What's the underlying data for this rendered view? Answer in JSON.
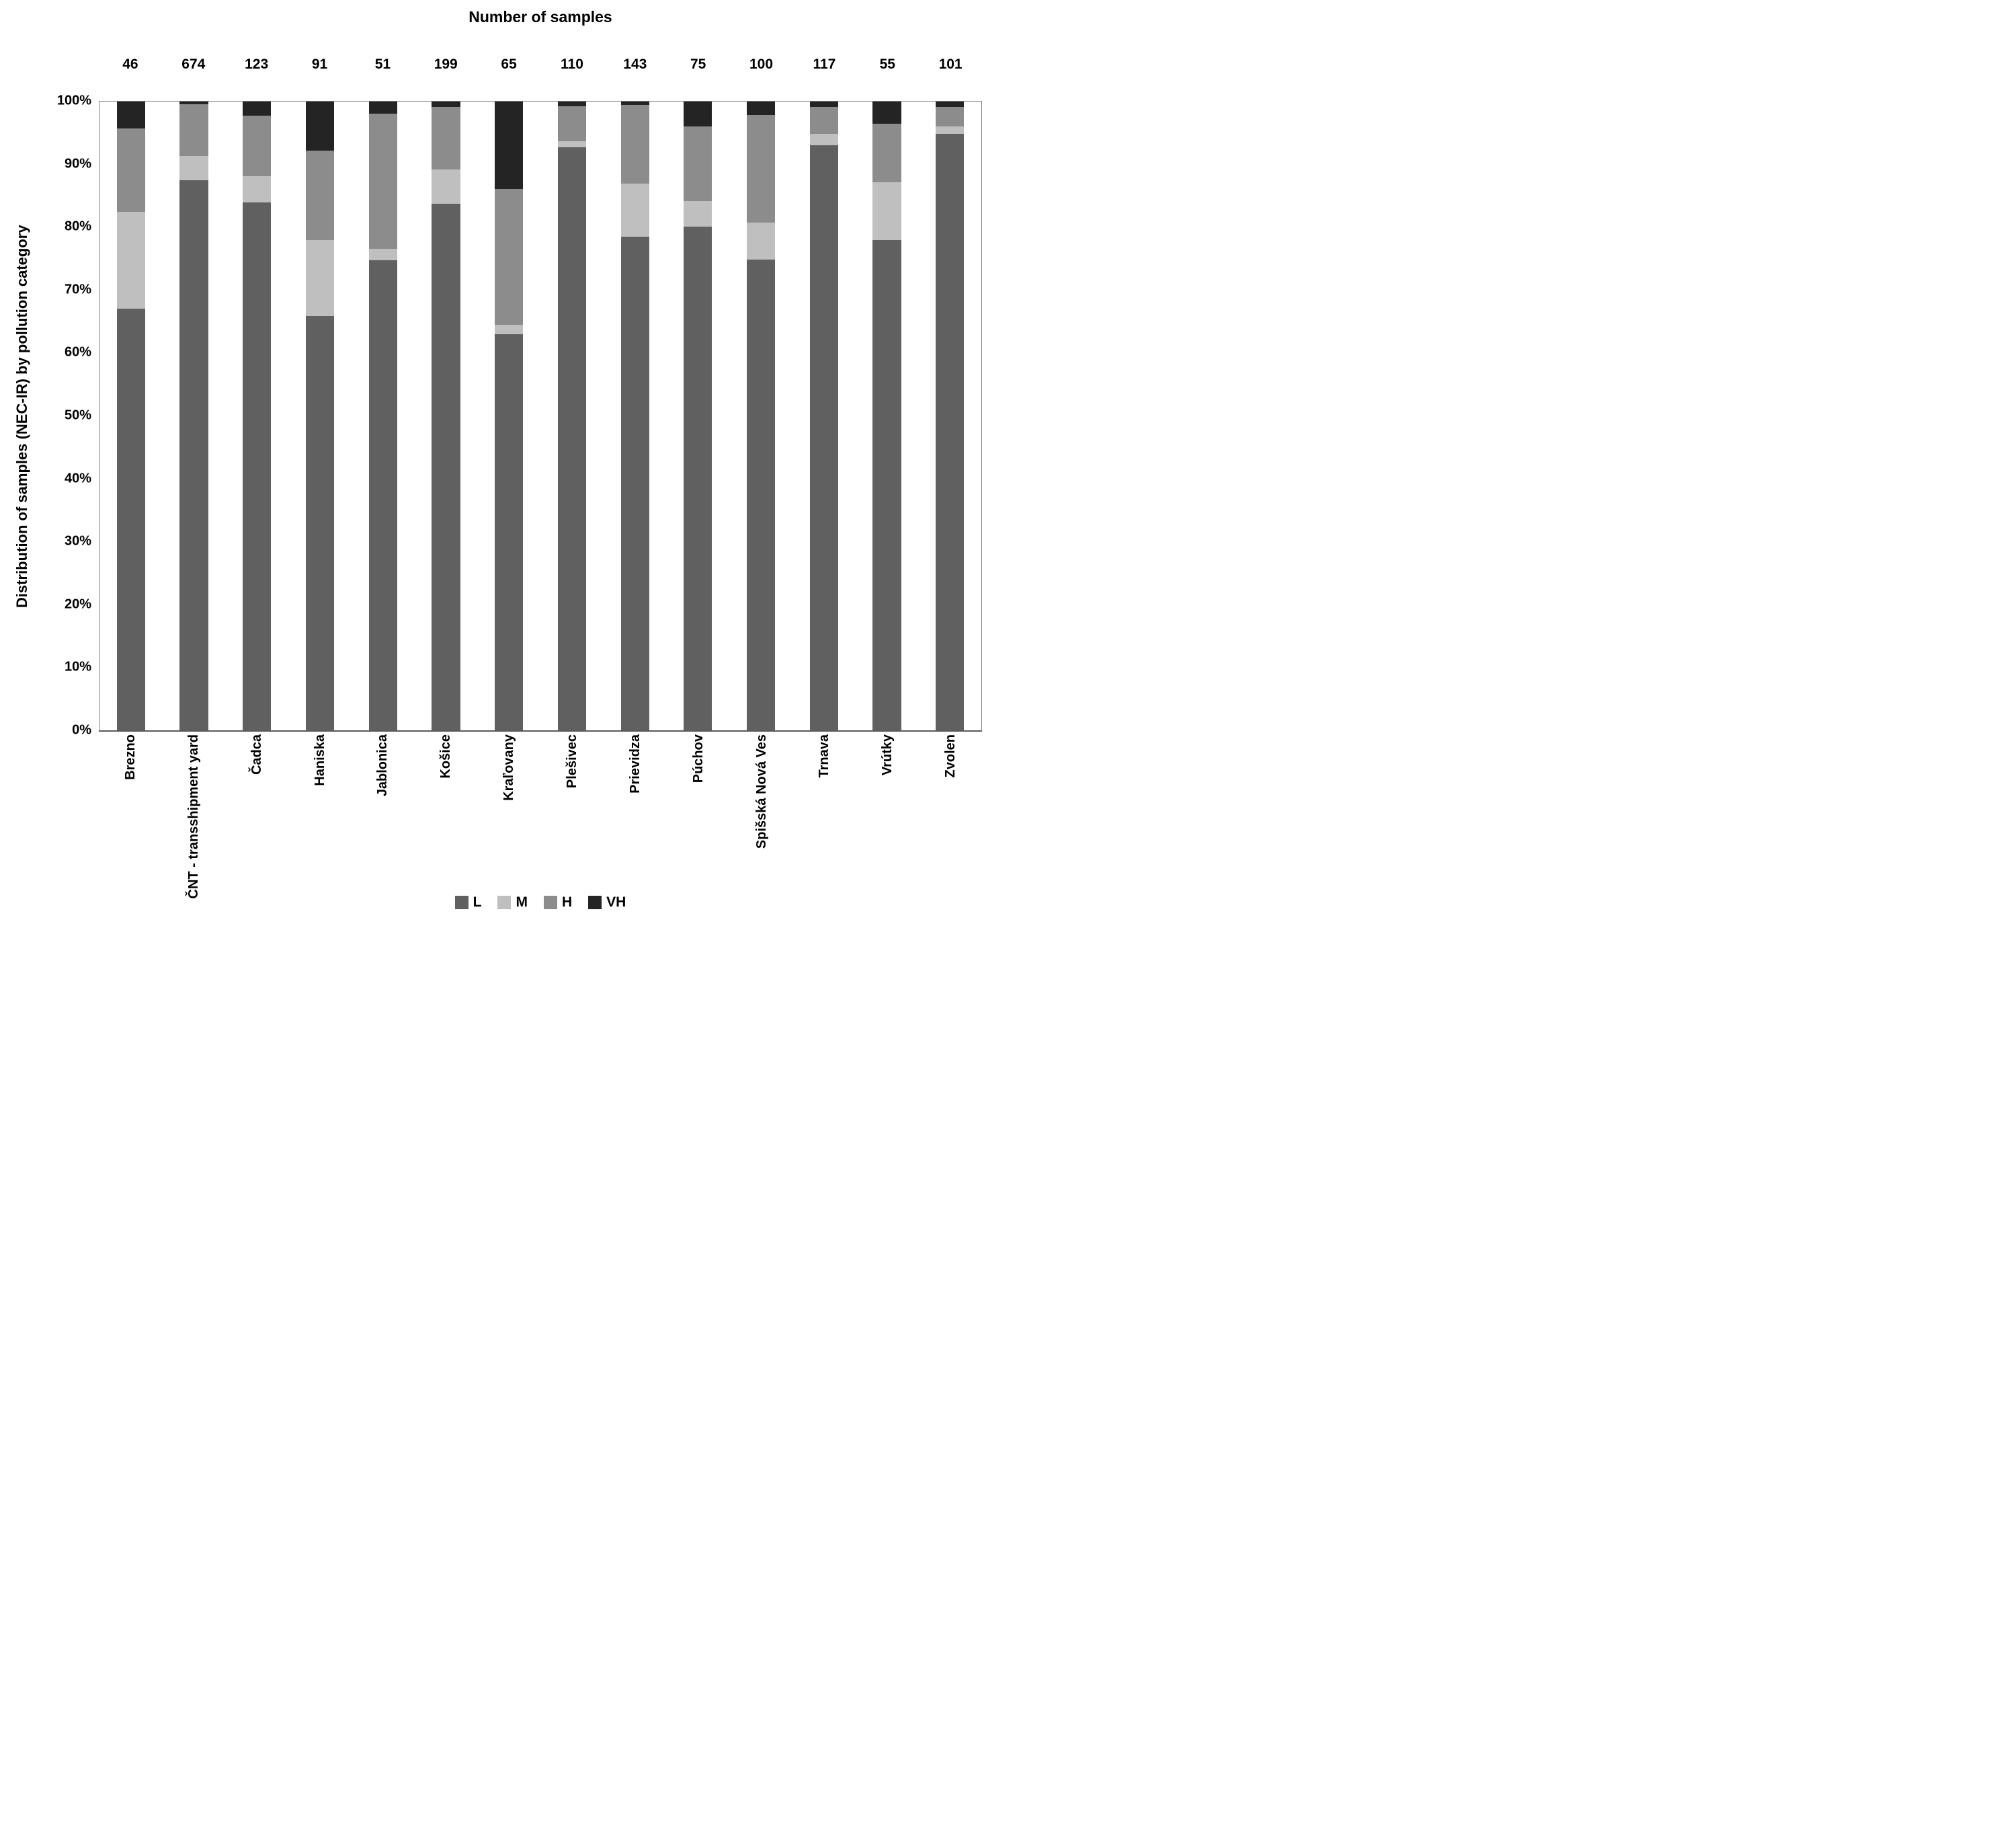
{
  "header": {
    "title": "Number of samples"
  },
  "y_axis_title": "Distribution of samples (NEC-IR)  by pollution category",
  "chart_data": {
    "type": "bar",
    "subtype": "stacked-percent",
    "title": "Number of samples",
    "xlabel": "",
    "ylabel": "Distribution of samples (NEC-IR)  by pollution category",
    "grid": false,
    "legend_position": "bottom-center",
    "ylim": [
      0,
      100
    ],
    "y_ticks": [
      "0%",
      "10%",
      "20%",
      "30%",
      "40%",
      "50%",
      "60%",
      "70%",
      "80%",
      "90%",
      "100%"
    ],
    "categories": [
      "Brezno",
      "ČNT - transshipment yard",
      "Čadca",
      "Haniska",
      "Jablonica",
      "Košice",
      "Kraľovany",
      "Plešivec",
      "Prievidza",
      "Púchov",
      "Spišská Nová Ves",
      "Trnava",
      "Vrútky",
      "Zvolen"
    ],
    "sample_counts": [
      46,
      674,
      123,
      91,
      51,
      199,
      65,
      110,
      143,
      75,
      100,
      117,
      55,
      101
    ],
    "series": [
      {
        "name": "L",
        "color": "#606060",
        "values": [
          67.1,
          87.5,
          84.0,
          65.9,
          74.8,
          83.7,
          63.0,
          92.7,
          78.5,
          80.1,
          74.9,
          93.0,
          78.0,
          94.9
        ]
      },
      {
        "name": "M",
        "color": "#bfbfbf",
        "values": [
          15.4,
          3.8,
          4.1,
          12.1,
          1.8,
          5.5,
          1.5,
          1.0,
          8.5,
          4.1,
          5.9,
          1.9,
          9.2,
          1.1
        ]
      },
      {
        "name": "H",
        "color": "#8c8c8c",
        "values": [
          13.2,
          8.3,
          9.7,
          14.2,
          21.5,
          9.9,
          21.6,
          5.6,
          12.5,
          11.9,
          17.1,
          4.2,
          9.3,
          3.1
        ]
      },
      {
        "name": "VH",
        "color": "#242424",
        "values": [
          4.3,
          0.4,
          2.2,
          7.8,
          1.9,
          0.9,
          13.9,
          0.7,
          0.5,
          3.9,
          2.1,
          0.9,
          3.5,
          0.9
        ]
      }
    ],
    "colors": {
      "frame": "#7f7f7f",
      "axis_line": "#5a5a5a",
      "text": "#000000",
      "background": "#ffffff"
    }
  }
}
